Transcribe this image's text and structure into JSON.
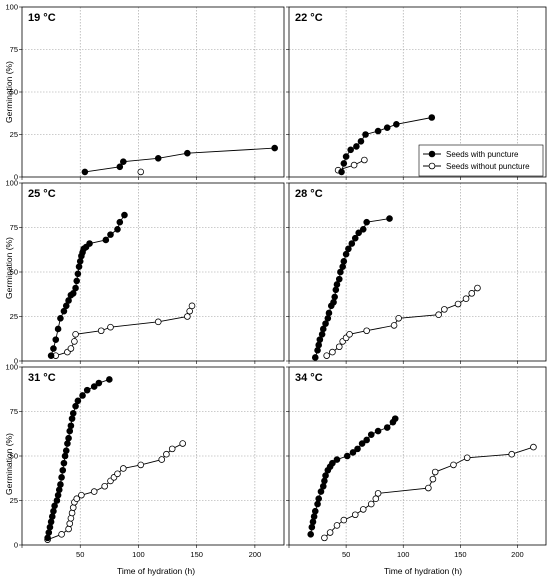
{
  "figure": {
    "ylabel": "Germination (%)",
    "xlabel": "Time of hydration (h)",
    "legend": {
      "filled_label": "Seeds with puncture",
      "open_label": "Seeds without puncture",
      "placement": "right, 22 °C panel"
    }
  },
  "chart_data": [
    {
      "type": "line",
      "title": "19 °C",
      "xlim": [
        0,
        225
      ],
      "ylim": [
        0,
        100
      ],
      "x_ticks": [
        "",
        "",
        "",
        "",
        ""
      ],
      "y_ticks": [
        "0",
        "25",
        "50",
        "75",
        "100"
      ],
      "y_tick_values": [
        0,
        25,
        50,
        75,
        100
      ],
      "grid": true,
      "series": [
        {
          "name": "Seeds with puncture",
          "marker": "filled",
          "x": [
            54,
            84,
            87,
            117,
            142,
            217
          ],
          "y": [
            3,
            6,
            9,
            11,
            14,
            17
          ]
        },
        {
          "name": "Seeds without puncture",
          "marker": "open",
          "x": [
            102
          ],
          "y": [
            3
          ]
        }
      ]
    },
    {
      "type": "line",
      "title": "22 °C",
      "xlim": [
        0,
        225
      ],
      "ylim": [
        0,
        100
      ],
      "x_ticks": [
        "",
        "",
        "",
        "",
        ""
      ],
      "y_ticks": [
        "",
        "",
        "",
        "",
        ""
      ],
      "y_tick_values": [
        0,
        25,
        50,
        75,
        100
      ],
      "grid": true,
      "series": [
        {
          "name": "Seeds with puncture",
          "marker": "filled",
          "x": [
            46,
            48,
            50,
            54,
            59,
            63,
            67,
            78,
            86,
            94,
            125
          ],
          "y": [
            3,
            8,
            12,
            16,
            18,
            21,
            25,
            27,
            29,
            31,
            35
          ]
        },
        {
          "name": "Seeds without puncture",
          "marker": "open",
          "x": [
            43,
            57,
            66
          ],
          "y": [
            4,
            7,
            10
          ]
        }
      ]
    },
    {
      "type": "line",
      "title": "25 °C",
      "xlim": [
        0,
        225
      ],
      "ylim": [
        0,
        100
      ],
      "x_ticks": [
        "",
        "",
        "",
        "",
        ""
      ],
      "y_ticks": [
        "0",
        "25",
        "50",
        "75",
        "100"
      ],
      "y_tick_values": [
        0,
        25,
        50,
        75,
        100
      ],
      "grid": true,
      "series": [
        {
          "name": "Seeds with puncture",
          "marker": "filled",
          "x": [
            25,
            27,
            29,
            31,
            33,
            36,
            38,
            40,
            42,
            44,
            46,
            47,
            48,
            49,
            50,
            51,
            52,
            53,
            55,
            58,
            72,
            76,
            82,
            84,
            88
          ],
          "y": [
            3,
            7,
            12,
            18,
            24,
            28,
            31,
            34,
            37,
            38,
            41,
            45,
            49,
            53,
            56,
            59,
            61,
            63,
            64,
            66,
            68,
            71,
            74,
            78,
            82
          ]
        },
        {
          "name": "Seeds without puncture",
          "marker": "open",
          "x": [
            29,
            39,
            42,
            45,
            46,
            68,
            76,
            117,
            142,
            144,
            146
          ],
          "y": [
            3,
            5,
            7,
            11,
            15,
            17,
            19,
            22,
            25,
            28,
            31
          ]
        }
      ]
    },
    {
      "type": "line",
      "title": "28 °C",
      "xlim": [
        0,
        225
      ],
      "ylim": [
        0,
        100
      ],
      "x_ticks": [
        "",
        "",
        "",
        "",
        ""
      ],
      "y_ticks": [
        "",
        "",
        "",
        "",
        ""
      ],
      "y_tick_values": [
        0,
        25,
        50,
        75,
        100
      ],
      "grid": true,
      "series": [
        {
          "name": "Seeds with puncture",
          "marker": "filled",
          "x": [
            23,
            25,
            26,
            27,
            29,
            30,
            32,
            34,
            35,
            37,
            39,
            40,
            41,
            42,
            44,
            45,
            47,
            48,
            50,
            52,
            55,
            58,
            61,
            65,
            68,
            88
          ],
          "y": [
            2,
            6,
            9,
            12,
            15,
            18,
            21,
            24,
            27,
            31,
            33,
            36,
            40,
            43,
            46,
            50,
            53,
            56,
            60,
            63,
            66,
            69,
            72,
            74,
            78,
            80
          ]
        },
        {
          "name": "Seeds without puncture",
          "marker": "open",
          "x": [
            33,
            38,
            44,
            47,
            50,
            53,
            68,
            92,
            96,
            131,
            136,
            148,
            155,
            160,
            165
          ],
          "y": [
            3,
            5,
            8,
            11,
            13,
            15,
            17,
            20,
            24,
            26,
            29,
            32,
            35,
            38,
            41
          ]
        }
      ]
    },
    {
      "type": "line",
      "title": "31 °C",
      "xlim": [
        0,
        225
      ],
      "ylim": [
        0,
        100
      ],
      "x_ticks": [
        "",
        "50",
        "100",
        "150",
        "200"
      ],
      "y_ticks": [
        "0",
        "25",
        "50",
        "75",
        "100"
      ],
      "y_tick_values": [
        0,
        25,
        50,
        75,
        100
      ],
      "grid": true,
      "series": [
        {
          "name": "Seeds with puncture",
          "marker": "filled",
          "x": [
            22,
            23,
            24,
            25,
            26,
            27,
            28,
            30,
            31,
            32,
            33,
            34,
            35,
            36,
            37,
            38,
            39,
            40,
            41,
            42,
            43,
            44,
            46,
            48,
            52,
            56,
            62,
            66,
            75
          ],
          "y": [
            4,
            7,
            10,
            13,
            16,
            19,
            22,
            25,
            28,
            31,
            34,
            38,
            42,
            46,
            50,
            53,
            57,
            60,
            64,
            67,
            71,
            74,
            78,
            81,
            84,
            87,
            89,
            91,
            93
          ]
        },
        {
          "name": "Seeds without puncture",
          "marker": "open",
          "x": [
            22,
            34,
            40,
            41,
            42,
            43,
            44,
            45,
            47,
            51,
            62,
            71,
            76,
            79,
            82,
            87,
            102,
            120,
            124,
            129,
            138
          ],
          "y": [
            3,
            6,
            9,
            12,
            15,
            18,
            21,
            24,
            26,
            28,
            30,
            33,
            36,
            38,
            40,
            43,
            45,
            48,
            51,
            54,
            57
          ]
        }
      ]
    },
    {
      "type": "line",
      "title": "34 °C",
      "xlim": [
        0,
        225
      ],
      "ylim": [
        0,
        100
      ],
      "x_ticks": [
        "",
        "50",
        "100",
        "150",
        "200"
      ],
      "y_ticks": [
        "",
        "",
        "",
        "",
        ""
      ],
      "y_tick_values": [
        0,
        25,
        50,
        75,
        100
      ],
      "grid": true,
      "series": [
        {
          "name": "Seeds with puncture",
          "marker": "filled",
          "x": [
            19,
            20,
            21,
            22,
            23,
            25,
            26,
            28,
            30,
            31,
            32,
            34,
            36,
            38,
            42,
            51,
            56,
            60,
            64,
            68,
            72,
            78,
            86,
            91,
            93
          ],
          "y": [
            6,
            10,
            13,
            16,
            19,
            23,
            26,
            30,
            33,
            36,
            39,
            42,
            44,
            46,
            48,
            50,
            52,
            54,
            57,
            59,
            62,
            64,
            66,
            69,
            71
          ]
        },
        {
          "name": "Seeds without puncture",
          "marker": "open",
          "x": [
            31,
            36,
            42,
            48,
            58,
            65,
            72,
            76,
            78,
            122,
            126,
            128,
            144,
            156,
            195,
            214
          ],
          "y": [
            4,
            7,
            11,
            14,
            17,
            20,
            23,
            26,
            29,
            32,
            37,
            41,
            45,
            49,
            51,
            55
          ]
        }
      ]
    }
  ]
}
